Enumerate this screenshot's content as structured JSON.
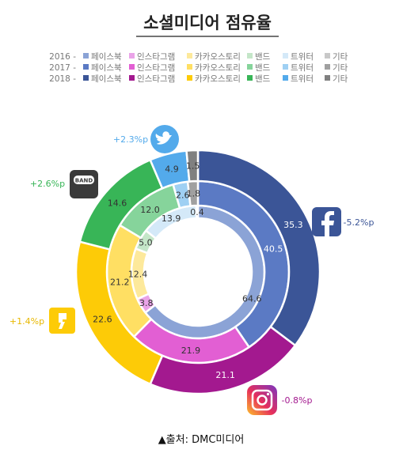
{
  "title": "소셜미디어 점유율",
  "source": "▲출처: DMC미디어",
  "chart_data": {
    "type": "donut",
    "title": "소셜미디어 점유율",
    "categories": [
      "페이스북",
      "인스타그램",
      "카카오스토리",
      "밴드",
      "트위터",
      "기타"
    ],
    "series": [
      {
        "name": "2016",
        "values": [
          64.6,
          3.8,
          12.4,
          5.0,
          13.9,
          0.4
        ],
        "colors": [
          "#8ba3d6",
          "#eaa3e8",
          "#fde99b",
          "#c4e6c8",
          "#d4e9f8",
          "#c8c8c8"
        ]
      },
      {
        "name": "2017",
        "values": [
          40.5,
          21.9,
          21.2,
          12.0,
          2.6,
          1.8
        ],
        "colors": [
          "#5b7ac4",
          "#e25fd3",
          "#ffdf63",
          "#86d49b",
          "#9fd0f3",
          "#a0a0a0"
        ]
      },
      {
        "name": "2018",
        "values": [
          35.3,
          21.1,
          22.6,
          14.6,
          4.9,
          1.5
        ],
        "colors": [
          "#3b5597",
          "#a3198f",
          "#fdcb07",
          "#38b557",
          "#53aaeb",
          "#808080"
        ]
      }
    ],
    "legend": {
      "position": "top",
      "rows": [
        {
          "year": "2016 -",
          "items": [
            "페이스북",
            "인스타그램",
            "카카오스토리",
            "밴드",
            "트위터",
            "기타"
          ]
        },
        {
          "year": "2017 -",
          "items": [
            "페이스북",
            "인스타그램",
            "카카오스토리",
            "밴드",
            "트위터",
            "기타"
          ]
        },
        {
          "year": "2018 -",
          "items": [
            "페이스북",
            "인스타그램",
            "카카오스토리",
            "밴드",
            "트위터",
            "기타"
          ]
        }
      ]
    },
    "annotations": [
      {
        "platform": "twitter-icon",
        "text": "+2.3%p",
        "color": "#53aaeb"
      },
      {
        "platform": "band-icon",
        "text": "+2.6%p",
        "color": "#38b557"
      },
      {
        "platform": "facebook-icon",
        "text": "-5.2%p",
        "color": "#3b5597"
      },
      {
        "platform": "kakaostory-icon",
        "text": "+1.4%p",
        "color": "#e8b800"
      },
      {
        "platform": "instagram-icon",
        "text": "-0.8%p",
        "color": "#a3198f"
      }
    ]
  }
}
